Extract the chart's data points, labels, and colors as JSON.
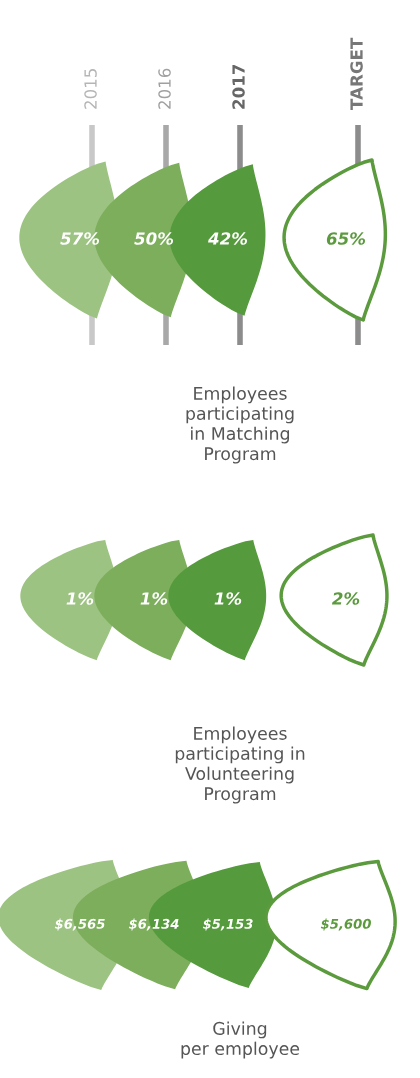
{
  "chart_data": [
    {
      "type": "other",
      "categories": [
        "2015",
        "2016",
        "2017",
        "TARGET"
      ],
      "values": [
        57,
        50,
        42,
        65
      ],
      "value_labels": [
        "57%",
        "50%",
        "42%",
        "65%"
      ],
      "colors": [
        "#9dc383",
        "#7cae5c",
        "#559a3c",
        "#ffffff"
      ],
      "xlabel": "Employees\nparticipating\nin Matching\nProgram"
    },
    {
      "type": "other",
      "values": [
        1,
        1,
        1,
        2
      ],
      "value_labels": [
        "1%",
        "1%",
        "1%",
        "2%"
      ],
      "colors": [
        "#9dc383",
        "#7cae5c",
        "#559a3c",
        "#ffffff"
      ],
      "xlabel": "Employees\nparticipating in\nVolunteering\nProgram"
    },
    {
      "type": "other",
      "values": [
        6565,
        6134,
        5153,
        5600
      ],
      "value_labels": [
        "$6,565",
        "$6,134",
        "$5,153",
        "$5,600"
      ],
      "colors": [
        "#9dc383",
        "#7cae5c",
        "#559a3c",
        "#ffffff"
      ],
      "xlabel": "Giving\nper employee"
    }
  ]
}
